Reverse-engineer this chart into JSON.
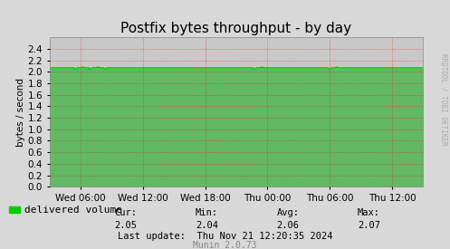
{
  "title": "Postfix bytes throughput - by day",
  "ylabel": "bytes / second",
  "bg_color": "#d8d8d8",
  "plot_bg_color": "#c8c8c8",
  "grid_color": "#ff0000",
  "line_color": "#00cc00",
  "line_fill_color": "#00aa00",
  "x_tick_labels": [
    "Wed 06:00",
    "Wed 12:00",
    "Wed 18:00",
    "Thu 00:00",
    "Thu 06:00",
    "Thu 12:00"
  ],
  "x_tick_positions": [
    0.083,
    0.25,
    0.417,
    0.583,
    0.75,
    0.917
  ],
  "ylim": [
    0.0,
    2.6
  ],
  "yticks": [
    0.0,
    0.2,
    0.4,
    0.6,
    0.8,
    1.0,
    1.2,
    1.4,
    1.6,
    1.8,
    2.0,
    2.2,
    2.4
  ],
  "line_value": 2.07,
  "line_dips": [
    [
      0.07,
      2.05
    ],
    [
      0.09,
      2.08
    ],
    [
      0.11,
      2.05
    ],
    [
      0.13,
      2.08
    ],
    [
      0.15,
      2.05
    ],
    [
      0.55,
      2.05
    ],
    [
      0.57,
      2.08
    ],
    [
      0.75,
      2.05
    ],
    [
      0.77,
      2.08
    ]
  ],
  "legend_label": "delivered volume",
  "legend_color": "#00cc00",
  "cur_val": "2.05",
  "min_val": "2.04",
  "avg_val": "2.06",
  "max_val": "2.07",
  "last_update": "Last update:  Thu Nov 21 12:20:35 2024",
  "munin_version": "Munin 2.0.73",
  "rrdtool_label": "RRDTOOL / TOBI OETIKER",
  "title_fontsize": 11,
  "axis_fontsize": 7.5,
  "legend_fontsize": 8,
  "footer_fontsize": 7.5
}
